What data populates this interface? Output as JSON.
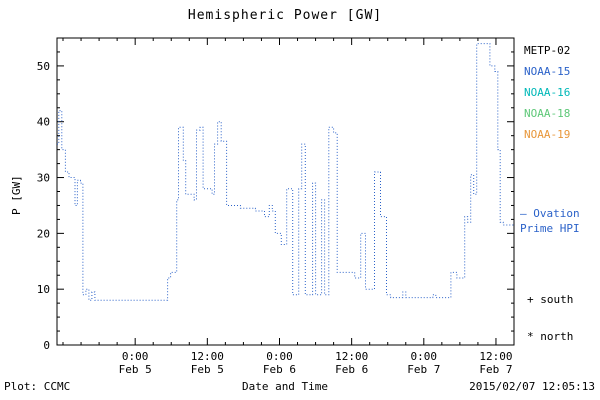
{
  "title": "Hemispheric Power [GW]",
  "axes": {
    "ylabel": "P [GW]",
    "xlabel": "Date and Time",
    "yticks": [
      0,
      10,
      20,
      30,
      40,
      50
    ],
    "xticks": [
      {
        "time": "0:00",
        "date": "Feb 5",
        "t": 0
      },
      {
        "time": "12:00",
        "date": "Feb 5",
        "t": 12
      },
      {
        "time": "0:00",
        "date": "Feb 6",
        "t": 24
      },
      {
        "time": "12:00",
        "date": "Feb 6",
        "t": 36
      },
      {
        "time": "0:00",
        "date": "Feb 7",
        "t": 48
      },
      {
        "time": "12:00",
        "date": "Feb 7",
        "t": 60
      }
    ]
  },
  "legend": {
    "satellites": [
      {
        "label": "METP-02",
        "color": "#000000"
      },
      {
        "label": "NOAA-15",
        "color": "#2b62c9"
      },
      {
        "label": "NOAA-16",
        "color": "#00b8b8"
      },
      {
        "label": "NOAA-18",
        "color": "#5ec878"
      },
      {
        "label": "NOAA-19",
        "color": "#e8973a"
      }
    ],
    "model_line1": "— Ovation",
    "model_line2": "Prime HPI",
    "model_color": "#2b62c9",
    "south_marker": "+ south",
    "north_marker": "* north"
  },
  "footer": {
    "left": "Plot: CCMC",
    "right": "2015/02/07 12:05:13"
  },
  "chart_data": {
    "type": "line",
    "style": "dotted-step",
    "line_color": "#2b62c9",
    "title": "Hemispheric Power [GW]",
    "xlabel": "Date and Time",
    "ylabel": "P [GW]",
    "ylim": [
      0,
      55
    ],
    "xlim_hours": [
      -13,
      63
    ],
    "x_reference": "hours since 2015-02-05 00:00",
    "x_minor_step_hours": 3,
    "y_minor_step": 2.5,
    "grid": false,
    "legend_position": "right-outside",
    "points": [
      [
        -13.0,
        36
      ],
      [
        -12.7,
        42
      ],
      [
        -12.2,
        35
      ],
      [
        -11.6,
        31
      ],
      [
        -11.0,
        30
      ],
      [
        -10.0,
        25
      ],
      [
        -9.6,
        29.5
      ],
      [
        -9.1,
        29
      ],
      [
        -8.7,
        9
      ],
      [
        -8.2,
        10
      ],
      [
        -7.7,
        8
      ],
      [
        -7.2,
        9.5
      ],
      [
        -6.7,
        8
      ],
      [
        5.0,
        8
      ],
      [
        5.4,
        12
      ],
      [
        5.9,
        13
      ],
      [
        6.9,
        26
      ],
      [
        7.2,
        39
      ],
      [
        8.0,
        33
      ],
      [
        8.4,
        27
      ],
      [
        9.8,
        26
      ],
      [
        10.2,
        38.5
      ],
      [
        10.8,
        39
      ],
      [
        11.3,
        28
      ],
      [
        12.8,
        27
      ],
      [
        13.2,
        36
      ],
      [
        13.7,
        40
      ],
      [
        14.3,
        36.5
      ],
      [
        15.2,
        25
      ],
      [
        17.5,
        24.5
      ],
      [
        20.0,
        24
      ],
      [
        21.5,
        23
      ],
      [
        22.3,
        25
      ],
      [
        22.8,
        24
      ],
      [
        23.3,
        20
      ],
      [
        24.3,
        18
      ],
      [
        25.2,
        28
      ],
      [
        26.2,
        9
      ],
      [
        27.2,
        28
      ],
      [
        27.7,
        36
      ],
      [
        28.3,
        9
      ],
      [
        29.5,
        29
      ],
      [
        30.0,
        9
      ],
      [
        31.0,
        26
      ],
      [
        31.5,
        9
      ],
      [
        32.2,
        39
      ],
      [
        33.0,
        38
      ],
      [
        33.6,
        13
      ],
      [
        35.0,
        13
      ],
      [
        36.5,
        12
      ],
      [
        37.5,
        20
      ],
      [
        38.3,
        10
      ],
      [
        39.8,
        31
      ],
      [
        40.8,
        23
      ],
      [
        41.8,
        9
      ],
      [
        42.5,
        8.5
      ],
      [
        44.5,
        9.5
      ],
      [
        45.0,
        8.5
      ],
      [
        49.5,
        9
      ],
      [
        50.0,
        8.5
      ],
      [
        52.5,
        13
      ],
      [
        53.5,
        12
      ],
      [
        54.8,
        23
      ],
      [
        55.3,
        22
      ],
      [
        55.8,
        30.5
      ],
      [
        56.3,
        27
      ],
      [
        56.8,
        54
      ],
      [
        58.5,
        54
      ],
      [
        59.0,
        50
      ],
      [
        59.8,
        49
      ],
      [
        60.3,
        35
      ],
      [
        60.7,
        22
      ],
      [
        61.2,
        21.5
      ],
      [
        63.0,
        21.5
      ]
    ]
  }
}
